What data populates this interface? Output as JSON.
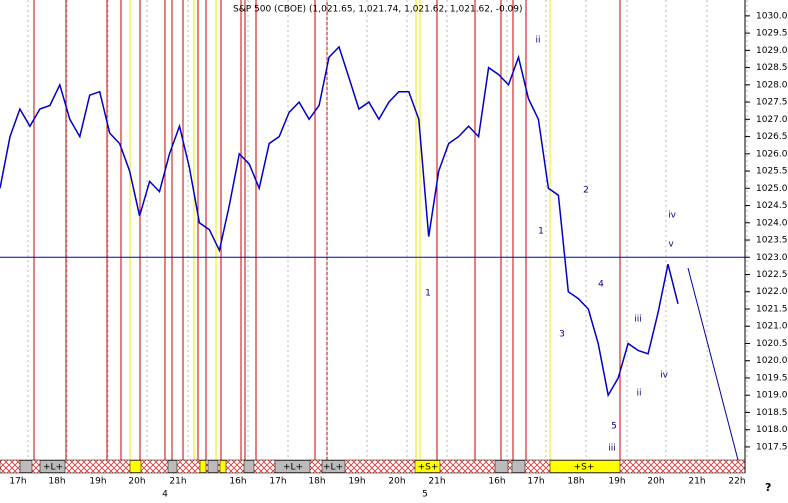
{
  "chart_data": {
    "type": "line",
    "title": "S&P 500 (CBOE) (1,021.65, 1,021.74, 1,021.62, 1,021.62, -0.09)",
    "series": [
      {
        "name": "S&P 500 (CBOE)",
        "color": "#0000cc",
        "values": [
          1025.0,
          1026.5,
          1027.3,
          1026.8,
          1027.3,
          1027.4,
          1028.0,
          1027.0,
          1026.5,
          1027.7,
          1027.8,
          1026.6,
          1026.3,
          1025.5,
          1024.2,
          1025.2,
          1024.9,
          1026.0,
          1026.8,
          1025.6,
          1024.0,
          1023.8,
          1023.2,
          1024.5,
          1026.0,
          1025.7,
          1025.0,
          1026.3,
          1026.5,
          1027.2,
          1027.5,
          1027.0,
          1027.4,
          1028.8,
          1029.1,
          1028.2,
          1027.3,
          1027.5,
          1027.0,
          1027.5,
          1027.8,
          1027.8,
          1027.0,
          1023.6,
          1025.5,
          1026.3,
          1026.5,
          1026.8,
          1026.5,
          1028.5,
          1028.3,
          1028.0,
          1028.8,
          1027.6,
          1027.0,
          1025.0,
          1024.8,
          1022.0,
          1021.8,
          1021.5,
          1020.5,
          1019.0,
          1019.5,
          1020.5,
          1020.3,
          1020.2,
          1021.4,
          1022.8,
          1021.65
        ]
      }
    ],
    "ylim": [
      1017.15,
      1030.46
    ],
    "yticks": [
      1017.5,
      {
        "value": 1018,
        "label": "1018.0"
      },
      1018.5,
      {
        "value": 1019,
        "label": "1019.0"
      },
      1019.5,
      {
        "value": 1020,
        "label": "1020.0"
      },
      1020.5,
      {
        "value": 1021,
        "label": "1021.0"
      },
      1021.5,
      {
        "value": 1022,
        "label": "1022.0"
      },
      1022.5,
      {
        "value": 1023,
        "label": "1023.0"
      },
      1023.5,
      {
        "value": 1024,
        "label": "1024.0"
      },
      1024.5,
      {
        "value": 1025,
        "label": "1025.0"
      },
      1025.5,
      {
        "value": 1026,
        "label": "1026.0"
      },
      1026.5,
      {
        "value": 1027,
        "label": "1027.0"
      },
      1027.5,
      {
        "value": 1028,
        "label": "1028.0"
      },
      1028.5,
      {
        "value": 1029,
        "label": "1029.0"
      },
      1029.5,
      {
        "value": 1030,
        "label": "1030.0"
      }
    ],
    "hline": 1023,
    "x_labels": [
      "17h",
      "18h",
      "19h",
      "20h",
      "21h",
      "16h",
      "17h",
      "18h",
      "19h",
      "20h",
      "21h",
      "16h",
      "17h",
      "18h",
      "19h",
      "20h",
      "21h",
      "22h"
    ],
    "date_labels": [
      "4",
      "5"
    ],
    "strip_labels": [
      "+L+",
      "+L+",
      "+L+",
      "+S+",
      "+S+"
    ],
    "annotations": [
      "ii",
      "2",
      "1",
      "1",
      "4",
      "3",
      "5",
      "iii",
      "ii",
      "iii",
      "iv",
      "iv",
      "v"
    ],
    "corner_label": "?"
  }
}
